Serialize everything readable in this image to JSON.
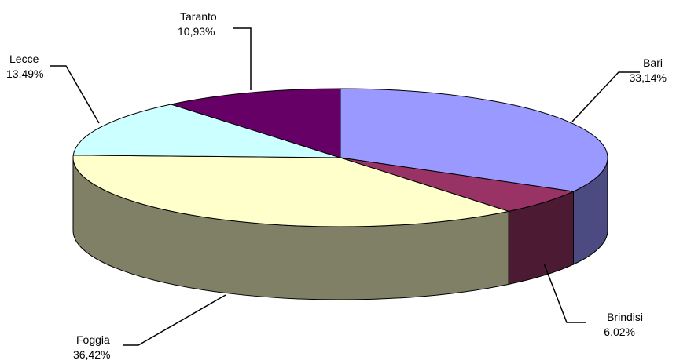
{
  "chart_data": {
    "type": "pie",
    "style": "3d",
    "title": "",
    "legend": "none",
    "slices": [
      {
        "name": "Bari",
        "value": 33.14,
        "label": "33,14%",
        "color": "#9999ff",
        "side_color": "#4b4b82"
      },
      {
        "name": "Brindisi",
        "value": 6.02,
        "label": "6,02%",
        "color": "#993366",
        "side_color": "#4d1a33"
      },
      {
        "name": "Foggia",
        "value": 36.42,
        "label": "36,42%",
        "color": "#ffffcc",
        "side_color": "#808066"
      },
      {
        "name": "Lecce",
        "value": 13.49,
        "label": "13,49%",
        "color": "#ccffff",
        "side_color": "#668080"
      },
      {
        "name": "Taranto",
        "value": 10.93,
        "label": "10,93%",
        "color": "#660066",
        "side_color": "#330033"
      }
    ]
  }
}
